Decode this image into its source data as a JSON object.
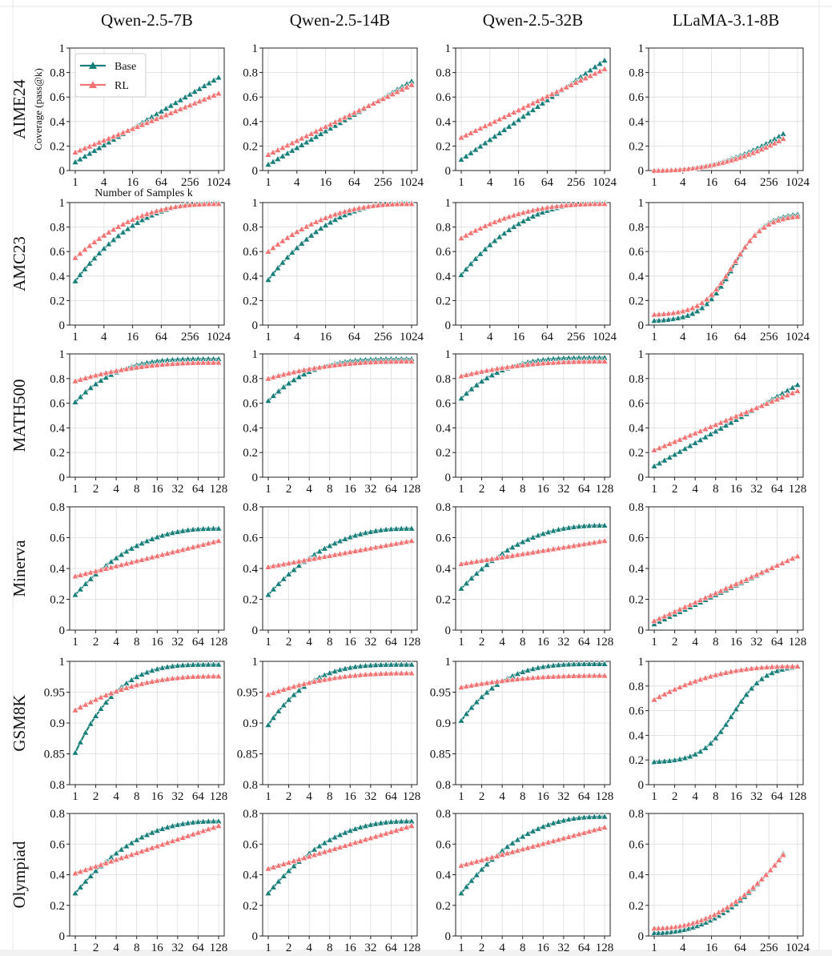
{
  "figure": {
    "column_titles": [
      "Qwen-2.5-7B",
      "Qwen-2.5-14B",
      "Qwen-2.5-32B",
      "LLaMA-3.1-8B"
    ],
    "row_titles": [
      "AIME24",
      "AMC23",
      "MATH500",
      "Minerva",
      "GSM8K",
      "Olympiad"
    ],
    "ylabel": "Coverage (pass@k)",
    "xlabel": "Number of Samples k",
    "legend": {
      "position": "top-left",
      "entries": [
        "Base",
        "RL"
      ]
    },
    "colors": {
      "Base": "#1a7f7a",
      "RL": "#f07474"
    }
  },
  "chart_data": [
    {
      "type": "line",
      "row": "AIME24",
      "model": "Qwen-2.5-7B",
      "x_scale": "log2",
      "x_ticks": [
        "1",
        "4",
        "16",
        "64",
        "256",
        "1024"
      ],
      "y_ticks": [
        "0",
        "0.2",
        "0.4",
        "0.6",
        "0.8",
        "1"
      ],
      "ylim": [
        0,
        1
      ],
      "grid": true,
      "x": [
        1,
        1024
      ],
      "series": [
        {
          "name": "Base",
          "values": [
            0.07,
            0.76
          ]
        },
        {
          "name": "RL",
          "values": [
            0.15,
            0.63
          ]
        }
      ]
    },
    {
      "type": "line",
      "row": "AIME24",
      "model": "Qwen-2.5-14B",
      "x_scale": "log2",
      "x_ticks": [
        "1",
        "4",
        "16",
        "64",
        "256",
        "1024"
      ],
      "y_ticks": [
        "0",
        "0.2",
        "0.4",
        "0.6",
        "0.8",
        "1"
      ],
      "ylim": [
        0,
        1
      ],
      "grid": true,
      "x": [
        1,
        1024
      ],
      "series": [
        {
          "name": "Base",
          "values": [
            0.05,
            0.73
          ]
        },
        {
          "name": "RL",
          "values": [
            0.13,
            0.7
          ]
        }
      ]
    },
    {
      "type": "line",
      "row": "AIME24",
      "model": "Qwen-2.5-32B",
      "x_scale": "log2",
      "x_ticks": [
        "1",
        "4",
        "16",
        "64",
        "256",
        "1024"
      ],
      "y_ticks": [
        "0",
        "0.2",
        "0.4",
        "0.6",
        "0.8",
        "1"
      ],
      "ylim": [
        0,
        1
      ],
      "grid": true,
      "x": [
        1,
        1024
      ],
      "series": [
        {
          "name": "Base",
          "values": [
            0.09,
            0.9
          ]
        },
        {
          "name": "RL",
          "values": [
            0.27,
            0.83
          ]
        }
      ]
    },
    {
      "type": "line",
      "row": "AIME24",
      "model": "LLaMA-3.1-8B",
      "x_scale": "log2",
      "x_ticks": [
        "1",
        "4",
        "16",
        "64",
        "256",
        "1024"
      ],
      "y_ticks": [
        "0",
        "0.2",
        "0.4",
        "0.6",
        "0.8",
        "1"
      ],
      "ylim": [
        0,
        1
      ],
      "grid": true,
      "x": [
        1,
        512
      ],
      "series": [
        {
          "name": "Base",
          "values": [
            0.0,
            0.3
          ]
        },
        {
          "name": "RL",
          "values": [
            0.0,
            0.26
          ]
        }
      ]
    },
    {
      "type": "line",
      "row": "AMC23",
      "model": "Qwen-2.5-7B",
      "x_scale": "log2",
      "x_ticks": [
        "1",
        "4",
        "16",
        "64",
        "256",
        "1024"
      ],
      "y_ticks": [
        "0",
        "0.2",
        "0.4",
        "0.6",
        "0.8",
        "1"
      ],
      "ylim": [
        0,
        1
      ],
      "grid": true,
      "x": [
        1,
        1024
      ],
      "series": [
        {
          "name": "Base",
          "values": [
            0.36,
            1.0
          ]
        },
        {
          "name": "RL",
          "values": [
            0.55,
            0.99
          ]
        }
      ]
    },
    {
      "type": "line",
      "row": "AMC23",
      "model": "Qwen-2.5-14B",
      "x_scale": "log2",
      "x_ticks": [
        "1",
        "4",
        "16",
        "64",
        "256",
        "1024"
      ],
      "y_ticks": [
        "0",
        "0.2",
        "0.4",
        "0.6",
        "0.8",
        "1"
      ],
      "ylim": [
        0,
        1
      ],
      "grid": true,
      "x": [
        1,
        1024
      ],
      "series": [
        {
          "name": "Base",
          "values": [
            0.37,
            1.0
          ]
        },
        {
          "name": "RL",
          "values": [
            0.6,
            0.99
          ]
        }
      ]
    },
    {
      "type": "line",
      "row": "AMC23",
      "model": "Qwen-2.5-32B",
      "x_scale": "log2",
      "x_ticks": [
        "1",
        "4",
        "16",
        "64",
        "256",
        "1024"
      ],
      "y_ticks": [
        "0",
        "0.2",
        "0.4",
        "0.6",
        "0.8",
        "1"
      ],
      "ylim": [
        0,
        1
      ],
      "grid": true,
      "x": [
        1,
        1024
      ],
      "series": [
        {
          "name": "Base",
          "values": [
            0.41,
            1.0
          ]
        },
        {
          "name": "RL",
          "values": [
            0.71,
            0.99
          ]
        }
      ]
    },
    {
      "type": "line",
      "row": "AMC23",
      "model": "LLaMA-3.1-8B",
      "x_scale": "log2",
      "x_ticks": [
        "1",
        "4",
        "16",
        "64",
        "256",
        "1024"
      ],
      "y_ticks": [
        "0",
        "0.2",
        "0.4",
        "0.6",
        "0.8",
        "1"
      ],
      "ylim": [
        0,
        1
      ],
      "grid": true,
      "x": [
        1,
        1024
      ],
      "series": [
        {
          "name": "Base",
          "values": [
            0.03,
            0.92
          ]
        },
        {
          "name": "RL",
          "values": [
            0.08,
            0.9
          ]
        }
      ]
    },
    {
      "type": "line",
      "row": "MATH500",
      "model": "Qwen-2.5-7B",
      "x_scale": "log2",
      "x_ticks": [
        "1",
        "2",
        "4",
        "8",
        "16",
        "32",
        "64",
        "128"
      ],
      "y_ticks": [
        "0",
        "0.2",
        "0.4",
        "0.6",
        "0.8",
        "1"
      ],
      "ylim": [
        0,
        1
      ],
      "grid": true,
      "x": [
        1,
        128
      ],
      "series": [
        {
          "name": "Base",
          "values": [
            0.61,
            0.96
          ]
        },
        {
          "name": "RL",
          "values": [
            0.78,
            0.93
          ]
        }
      ]
    },
    {
      "type": "line",
      "row": "MATH500",
      "model": "Qwen-2.5-14B",
      "x_scale": "log2",
      "x_ticks": [
        "1",
        "2",
        "4",
        "8",
        "16",
        "32",
        "64",
        "128"
      ],
      "y_ticks": [
        "0",
        "0.2",
        "0.4",
        "0.6",
        "0.8",
        "1"
      ],
      "ylim": [
        0,
        1
      ],
      "grid": true,
      "x": [
        1,
        128
      ],
      "series": [
        {
          "name": "Base",
          "values": [
            0.62,
            0.96
          ]
        },
        {
          "name": "RL",
          "values": [
            0.8,
            0.94
          ]
        }
      ]
    },
    {
      "type": "line",
      "row": "MATH500",
      "model": "Qwen-2.5-32B",
      "x_scale": "log2",
      "x_ticks": [
        "1",
        "2",
        "4",
        "8",
        "16",
        "32",
        "64",
        "128"
      ],
      "y_ticks": [
        "0",
        "0.2",
        "0.4",
        "0.6",
        "0.8",
        "1"
      ],
      "ylim": [
        0,
        1
      ],
      "grid": true,
      "x": [
        1,
        128
      ],
      "series": [
        {
          "name": "Base",
          "values": [
            0.64,
            0.97
          ]
        },
        {
          "name": "RL",
          "values": [
            0.82,
            0.94
          ]
        }
      ]
    },
    {
      "type": "line",
      "row": "MATH500",
      "model": "LLaMA-3.1-8B",
      "x_scale": "log2",
      "x_ticks": [
        "1",
        "2",
        "4",
        "8",
        "16",
        "32",
        "64",
        "128"
      ],
      "y_ticks": [
        "0",
        "0.2",
        "0.4",
        "0.6",
        "0.8",
        "1"
      ],
      "ylim": [
        0,
        1
      ],
      "grid": true,
      "x": [
        1,
        128
      ],
      "series": [
        {
          "name": "Base",
          "values": [
            0.09,
            0.75
          ]
        },
        {
          "name": "RL",
          "values": [
            0.22,
            0.7
          ]
        }
      ]
    },
    {
      "type": "line",
      "row": "Minerva",
      "model": "Qwen-2.5-7B",
      "x_scale": "log2",
      "x_ticks": [
        "1",
        "2",
        "4",
        "8",
        "16",
        "32",
        "64",
        "128"
      ],
      "y_ticks": [
        "0",
        "0.2",
        "0.4",
        "0.6",
        "0.8"
      ],
      "ylim": [
        0,
        0.8
      ],
      "grid": true,
      "x": [
        1,
        128
      ],
      "series": [
        {
          "name": "Base",
          "values": [
            0.23,
            0.66
          ]
        },
        {
          "name": "RL",
          "values": [
            0.35,
            0.58
          ]
        }
      ]
    },
    {
      "type": "line",
      "row": "Minerva",
      "model": "Qwen-2.5-14B",
      "x_scale": "log2",
      "x_ticks": [
        "1",
        "2",
        "4",
        "8",
        "16",
        "32",
        "64",
        "128"
      ],
      "y_ticks": [
        "0",
        "0.2",
        "0.4",
        "0.6",
        "0.8"
      ],
      "ylim": [
        0,
        0.8
      ],
      "grid": true,
      "x": [
        1,
        128
      ],
      "series": [
        {
          "name": "Base",
          "values": [
            0.23,
            0.66
          ]
        },
        {
          "name": "RL",
          "values": [
            0.41,
            0.58
          ]
        }
      ]
    },
    {
      "type": "line",
      "row": "Minerva",
      "model": "Qwen-2.5-32B",
      "x_scale": "log2",
      "x_ticks": [
        "1",
        "2",
        "4",
        "8",
        "16",
        "32",
        "64",
        "128"
      ],
      "y_ticks": [
        "0",
        "0.2",
        "0.4",
        "0.6",
        "0.8"
      ],
      "ylim": [
        0,
        0.8
      ],
      "grid": true,
      "x": [
        1,
        128
      ],
      "series": [
        {
          "name": "Base",
          "values": [
            0.27,
            0.68
          ]
        },
        {
          "name": "RL",
          "values": [
            0.43,
            0.58
          ]
        }
      ]
    },
    {
      "type": "line",
      "row": "Minerva",
      "model": "LLaMA-3.1-8B",
      "x_scale": "log2",
      "x_ticks": [
        "1",
        "2",
        "4",
        "8",
        "16",
        "32",
        "64",
        "128"
      ],
      "y_ticks": [
        "0",
        "0.2",
        "0.4",
        "0.6",
        "0.8"
      ],
      "ylim": [
        0,
        0.8
      ],
      "grid": true,
      "x": [
        1,
        128
      ],
      "series": [
        {
          "name": "Base",
          "values": [
            0.04,
            0.48
          ]
        },
        {
          "name": "RL",
          "values": [
            0.06,
            0.48
          ]
        }
      ]
    },
    {
      "type": "line",
      "row": "GSM8K",
      "model": "Qwen-2.5-7B",
      "x_scale": "log2",
      "x_ticks": [
        "1",
        "2",
        "4",
        "8",
        "16",
        "32",
        "64",
        "128"
      ],
      "y_ticks": [
        "0.8",
        "0.85",
        "0.9",
        "0.95",
        "1"
      ],
      "ylim": [
        0.8,
        1
      ],
      "grid": true,
      "x": [
        1,
        128
      ],
      "series": [
        {
          "name": "Base",
          "values": [
            0.852,
            0.995
          ]
        },
        {
          "name": "RL",
          "values": [
            0.921,
            0.976
          ]
        }
      ]
    },
    {
      "type": "line",
      "row": "GSM8K",
      "model": "Qwen-2.5-14B",
      "x_scale": "log2",
      "x_ticks": [
        "1",
        "2",
        "4",
        "8",
        "16",
        "32",
        "64",
        "128"
      ],
      "y_ticks": [
        "0.8",
        "0.85",
        "0.9",
        "0.95",
        "1"
      ],
      "ylim": [
        0.8,
        1
      ],
      "grid": true,
      "x": [
        1,
        128
      ],
      "series": [
        {
          "name": "Base",
          "values": [
            0.897,
            0.995
          ]
        },
        {
          "name": "RL",
          "values": [
            0.946,
            0.981
          ]
        }
      ]
    },
    {
      "type": "line",
      "row": "GSM8K",
      "model": "Qwen-2.5-32B",
      "x_scale": "log2",
      "x_ticks": [
        "1",
        "2",
        "4",
        "8",
        "16",
        "32",
        "64",
        "128"
      ],
      "y_ticks": [
        "0.8",
        "0.85",
        "0.9",
        "0.95",
        "1"
      ],
      "ylim": [
        0.8,
        1
      ],
      "grid": true,
      "x": [
        1,
        128
      ],
      "series": [
        {
          "name": "Base",
          "values": [
            0.904,
            0.996
          ]
        },
        {
          "name": "RL",
          "values": [
            0.958,
            0.977
          ]
        }
      ]
    },
    {
      "type": "line",
      "row": "GSM8K",
      "model": "LLaMA-3.1-8B",
      "x_scale": "log2",
      "x_ticks": [
        "1",
        "2",
        "4",
        "8",
        "16",
        "32",
        "64",
        "128"
      ],
      "y_ticks": [
        "0",
        "0.2",
        "0.4",
        "0.6",
        "0.8",
        "1"
      ],
      "ylim": [
        0,
        1
      ],
      "grid": true,
      "x": [
        1,
        128
      ],
      "series": [
        {
          "name": "Base",
          "values": [
            0.18,
            0.97
          ]
        },
        {
          "name": "RL",
          "values": [
            0.69,
            0.96
          ]
        }
      ]
    },
    {
      "type": "line",
      "row": "Olympiad",
      "model": "Qwen-2.5-7B",
      "x_scale": "log2",
      "x_ticks": [
        "1",
        "2",
        "4",
        "8",
        "16",
        "32",
        "64",
        "128"
      ],
      "y_ticks": [
        "0",
        "0.2",
        "0.4",
        "0.6",
        "0.8"
      ],
      "ylim": [
        0,
        0.8
      ],
      "grid": true,
      "x": [
        1,
        128
      ],
      "series": [
        {
          "name": "Base",
          "values": [
            0.28,
            0.75
          ]
        },
        {
          "name": "RL",
          "values": [
            0.41,
            0.72
          ]
        }
      ]
    },
    {
      "type": "line",
      "row": "Olympiad",
      "model": "Qwen-2.5-14B",
      "x_scale": "log2",
      "x_ticks": [
        "1",
        "2",
        "4",
        "8",
        "16",
        "32",
        "64",
        "128"
      ],
      "y_ticks": [
        "0",
        "0.2",
        "0.4",
        "0.6",
        "0.8"
      ],
      "ylim": [
        0,
        0.8
      ],
      "grid": true,
      "x": [
        1,
        128
      ],
      "series": [
        {
          "name": "Base",
          "values": [
            0.28,
            0.75
          ]
        },
        {
          "name": "RL",
          "values": [
            0.44,
            0.72
          ]
        }
      ]
    },
    {
      "type": "line",
      "row": "Olympiad",
      "model": "Qwen-2.5-32B",
      "x_scale": "log2",
      "x_ticks": [
        "1",
        "2",
        "4",
        "8",
        "16",
        "32",
        "64",
        "128"
      ],
      "y_ticks": [
        "0",
        "0.2",
        "0.4",
        "0.6",
        "0.8"
      ],
      "ylim": [
        0,
        0.8
      ],
      "grid": true,
      "x": [
        1,
        128
      ],
      "series": [
        {
          "name": "Base",
          "values": [
            0.28,
            0.78
          ]
        },
        {
          "name": "RL",
          "values": [
            0.46,
            0.71
          ]
        }
      ]
    },
    {
      "type": "line",
      "row": "Olympiad",
      "model": "LLaMA-3.1-8B",
      "x_scale": "log2",
      "x_ticks": [
        "1",
        "4",
        "16",
        "64",
        "256",
        "1024"
      ],
      "y_ticks": [
        "0",
        "0.2",
        "0.4",
        "0.6",
        "0.8"
      ],
      "ylim": [
        0,
        0.8
      ],
      "grid": true,
      "x": [
        1,
        512
      ],
      "series": [
        {
          "name": "Base",
          "values": [
            0.02,
            0.54
          ]
        },
        {
          "name": "RL",
          "values": [
            0.05,
            0.53
          ]
        }
      ]
    }
  ]
}
